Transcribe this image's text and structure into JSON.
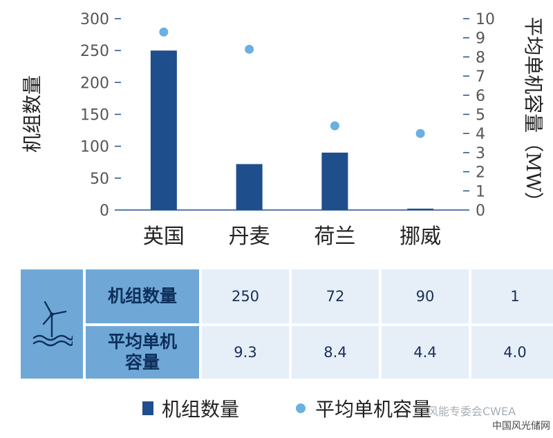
{
  "chart_data": {
    "type": "bar",
    "categories": [
      "英国",
      "丹麦",
      "荷兰",
      "挪威"
    ],
    "series": [
      {
        "name": "机组数量",
        "type": "bar",
        "axis": "left",
        "values": [
          250,
          72,
          90,
          1
        ],
        "color": "#1f4e8c"
      },
      {
        "name": "平均单机容量",
        "type": "scatter",
        "axis": "right",
        "values": [
          9.3,
          8.4,
          4.4,
          4.0
        ],
        "color": "#6ab0e0"
      }
    ],
    "ylabel": "机组数量",
    "ylabel_right": "平均单机容量（MW）",
    "ylim": [
      0,
      300
    ],
    "ylim_right": [
      0,
      10
    ],
    "yticks": [
      0,
      50,
      100,
      150,
      200,
      250,
      300
    ],
    "yticks_right": [
      0,
      1,
      2,
      3,
      4,
      5,
      6,
      7,
      8,
      9,
      10
    ],
    "grid": false,
    "legend_position": "bottom"
  },
  "table": {
    "icon": "wind-turbine-icon",
    "rows": [
      {
        "header": "机组数量",
        "values": [
          "250",
          "72",
          "90",
          "1"
        ]
      },
      {
        "header": "平均单机\n容量",
        "values": [
          "9.3",
          "8.4",
          "4.4",
          "4.0"
        ]
      }
    ]
  },
  "legend": {
    "bar_label": "机组数量",
    "dot_label": "平均单机容量"
  },
  "watermark": {
    "wechat": "风能专委会CWEA",
    "site": "中国风光储网"
  },
  "colors": {
    "bar": "#1f4e8c",
    "dot": "#6ab0e0",
    "table_header": "#6fa8d6",
    "table_cell": "#e6eef8"
  }
}
